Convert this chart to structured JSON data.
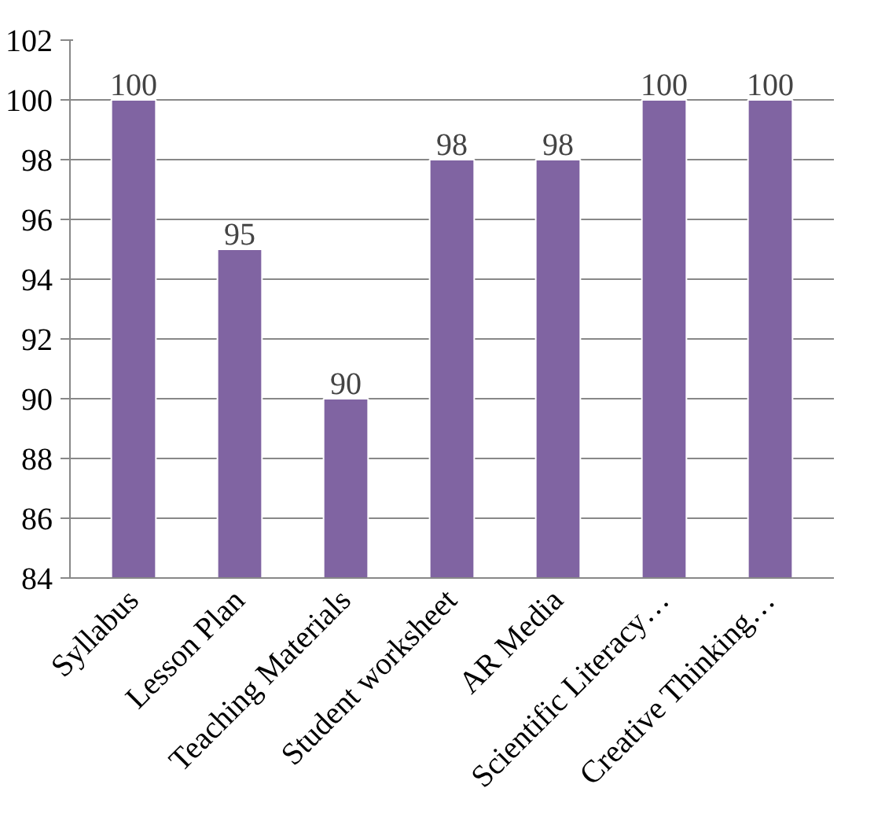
{
  "chart_data": {
    "type": "bar",
    "categories": [
      "Syllabus",
      "Lesson Plan",
      "Teaching Materials",
      "Student worksheet",
      "AR Media",
      "Scientific Literacy…",
      "Creative Thinking…"
    ],
    "values": [
      100,
      95,
      90,
      98,
      98,
      100,
      100
    ],
    "color": "#8064a2",
    "ylim": [
      84,
      102
    ],
    "yticks": [
      84,
      86,
      88,
      90,
      92,
      94,
      96,
      98,
      100,
      102
    ],
    "grid": "y",
    "data_labels": true
  }
}
